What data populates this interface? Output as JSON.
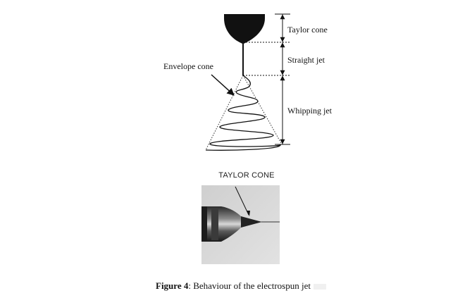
{
  "labels": {
    "taylor_cone": "Taylor cone",
    "straight_jet": "Straight jet",
    "whipping_jet": "Whipping jet",
    "envelope_cone": "Envelope cone"
  },
  "photo": {
    "title": "TAYLOR CONE"
  },
  "caption": {
    "figure_label": "Figure 4",
    "text": ": Behaviour of the electrospun jet"
  }
}
